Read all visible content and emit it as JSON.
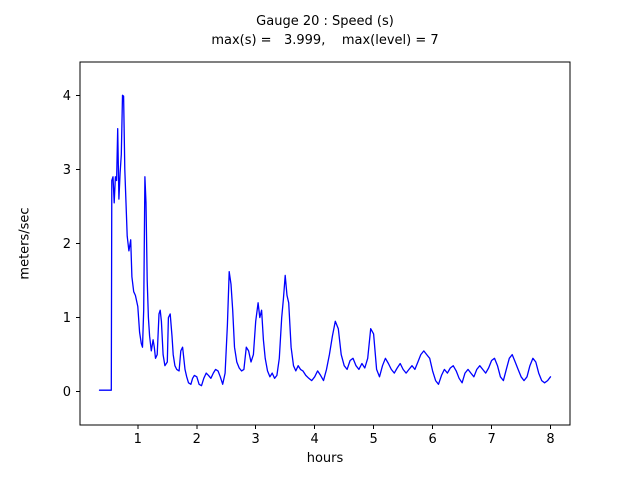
{
  "chart_data": {
    "type": "line",
    "title": "Gauge 20 : Speed (s)",
    "subtitle": "max(s) =   3.999,    max(level) = 7",
    "xlabel": "hours",
    "ylabel": "meters/sec",
    "xlim": [
      0.02,
      8.33
    ],
    "ylim": [
      -0.45,
      4.45
    ],
    "xticks": [
      1,
      2,
      3,
      4,
      5,
      6,
      7,
      8
    ],
    "yticks": [
      0,
      1,
      2,
      3,
      4
    ],
    "grid": false,
    "legend": "none",
    "line_color": "#0000ff",
    "frame_color": "#000000",
    "max_s": 3.999,
    "max_level": 7,
    "series": [
      {
        "name": "Speed (s)",
        "points": [
          [
            0.35,
            0.02
          ],
          [
            0.45,
            0.02
          ],
          [
            0.55,
            0.02
          ],
          [
            0.56,
            2.85
          ],
          [
            0.58,
            2.9
          ],
          [
            0.6,
            2.55
          ],
          [
            0.62,
            2.9
          ],
          [
            0.64,
            2.85
          ],
          [
            0.66,
            3.55
          ],
          [
            0.68,
            2.6
          ],
          [
            0.7,
            2.95
          ],
          [
            0.72,
            3.2
          ],
          [
            0.74,
            4.0
          ],
          [
            0.76,
            3.99
          ],
          [
            0.78,
            3.0
          ],
          [
            0.8,
            2.55
          ],
          [
            0.82,
            2.1
          ],
          [
            0.85,
            1.9
          ],
          [
            0.88,
            2.05
          ],
          [
            0.9,
            1.55
          ],
          [
            0.93,
            1.35
          ],
          [
            0.96,
            1.3
          ],
          [
            1.0,
            1.15
          ],
          [
            1.03,
            0.8
          ],
          [
            1.06,
            0.65
          ],
          [
            1.08,
            0.6
          ],
          [
            1.1,
            1.1
          ],
          [
            1.12,
            2.9
          ],
          [
            1.14,
            2.55
          ],
          [
            1.16,
            1.5
          ],
          [
            1.18,
            1.0
          ],
          [
            1.2,
            0.75
          ],
          [
            1.23,
            0.55
          ],
          [
            1.26,
            0.7
          ],
          [
            1.28,
            0.6
          ],
          [
            1.3,
            0.45
          ],
          [
            1.33,
            0.5
          ],
          [
            1.36,
            1.05
          ],
          [
            1.38,
            1.1
          ],
          [
            1.4,
            0.95
          ],
          [
            1.43,
            0.5
          ],
          [
            1.46,
            0.35
          ],
          [
            1.5,
            0.4
          ],
          [
            1.52,
            1.0
          ],
          [
            1.55,
            1.05
          ],
          [
            1.58,
            0.75
          ],
          [
            1.6,
            0.5
          ],
          [
            1.63,
            0.35
          ],
          [
            1.66,
            0.3
          ],
          [
            1.7,
            0.28
          ],
          [
            1.73,
            0.55
          ],
          [
            1.76,
            0.6
          ],
          [
            1.8,
            0.3
          ],
          [
            1.83,
            0.2
          ],
          [
            1.86,
            0.12
          ],
          [
            1.9,
            0.1
          ],
          [
            1.93,
            0.18
          ],
          [
            1.96,
            0.22
          ],
          [
            2.0,
            0.2
          ],
          [
            2.04,
            0.1
          ],
          [
            2.08,
            0.08
          ],
          [
            2.12,
            0.18
          ],
          [
            2.16,
            0.25
          ],
          [
            2.2,
            0.22
          ],
          [
            2.24,
            0.18
          ],
          [
            2.28,
            0.25
          ],
          [
            2.32,
            0.3
          ],
          [
            2.36,
            0.28
          ],
          [
            2.4,
            0.2
          ],
          [
            2.44,
            0.1
          ],
          [
            2.48,
            0.25
          ],
          [
            2.52,
            0.9
          ],
          [
            2.55,
            1.62
          ],
          [
            2.58,
            1.45
          ],
          [
            2.61,
            1.1
          ],
          [
            2.64,
            0.6
          ],
          [
            2.68,
            0.4
          ],
          [
            2.72,
            0.32
          ],
          [
            2.76,
            0.28
          ],
          [
            2.8,
            0.3
          ],
          [
            2.84,
            0.6
          ],
          [
            2.88,
            0.55
          ],
          [
            2.92,
            0.4
          ],
          [
            2.96,
            0.5
          ],
          [
            3.0,
            0.95
          ],
          [
            3.04,
            1.2
          ],
          [
            3.07,
            1.0
          ],
          [
            3.1,
            1.1
          ],
          [
            3.13,
            0.7
          ],
          [
            3.16,
            0.45
          ],
          [
            3.2,
            0.28
          ],
          [
            3.24,
            0.2
          ],
          [
            3.28,
            0.25
          ],
          [
            3.32,
            0.18
          ],
          [
            3.36,
            0.22
          ],
          [
            3.4,
            0.45
          ],
          [
            3.44,
            1.0
          ],
          [
            3.47,
            1.25
          ],
          [
            3.5,
            1.57
          ],
          [
            3.53,
            1.3
          ],
          [
            3.56,
            1.2
          ],
          [
            3.6,
            0.6
          ],
          [
            3.64,
            0.35
          ],
          [
            3.68,
            0.28
          ],
          [
            3.72,
            0.35
          ],
          [
            3.76,
            0.3
          ],
          [
            3.8,
            0.28
          ],
          [
            3.85,
            0.22
          ],
          [
            3.9,
            0.18
          ],
          [
            3.95,
            0.15
          ],
          [
            4.0,
            0.2
          ],
          [
            4.05,
            0.28
          ],
          [
            4.1,
            0.22
          ],
          [
            4.15,
            0.15
          ],
          [
            4.2,
            0.3
          ],
          [
            4.25,
            0.5
          ],
          [
            4.3,
            0.75
          ],
          [
            4.35,
            0.95
          ],
          [
            4.4,
            0.85
          ],
          [
            4.45,
            0.5
          ],
          [
            4.5,
            0.35
          ],
          [
            4.55,
            0.3
          ],
          [
            4.6,
            0.42
          ],
          [
            4.65,
            0.45
          ],
          [
            4.7,
            0.35
          ],
          [
            4.75,
            0.3
          ],
          [
            4.8,
            0.38
          ],
          [
            4.85,
            0.32
          ],
          [
            4.9,
            0.45
          ],
          [
            4.95,
            0.85
          ],
          [
            5.0,
            0.78
          ],
          [
            5.05,
            0.3
          ],
          [
            5.1,
            0.2
          ],
          [
            5.15,
            0.35
          ],
          [
            5.2,
            0.45
          ],
          [
            5.25,
            0.38
          ],
          [
            5.3,
            0.3
          ],
          [
            5.35,
            0.25
          ],
          [
            5.4,
            0.32
          ],
          [
            5.45,
            0.38
          ],
          [
            5.5,
            0.3
          ],
          [
            5.55,
            0.25
          ],
          [
            5.6,
            0.3
          ],
          [
            5.65,
            0.35
          ],
          [
            5.7,
            0.3
          ],
          [
            5.75,
            0.4
          ],
          [
            5.8,
            0.5
          ],
          [
            5.85,
            0.55
          ],
          [
            5.9,
            0.5
          ],
          [
            5.95,
            0.45
          ],
          [
            6.0,
            0.28
          ],
          [
            6.05,
            0.15
          ],
          [
            6.1,
            0.1
          ],
          [
            6.15,
            0.22
          ],
          [
            6.2,
            0.3
          ],
          [
            6.25,
            0.25
          ],
          [
            6.3,
            0.32
          ],
          [
            6.35,
            0.35
          ],
          [
            6.4,
            0.28
          ],
          [
            6.45,
            0.18
          ],
          [
            6.5,
            0.12
          ],
          [
            6.55,
            0.25
          ],
          [
            6.6,
            0.3
          ],
          [
            6.65,
            0.25
          ],
          [
            6.7,
            0.2
          ],
          [
            6.75,
            0.3
          ],
          [
            6.8,
            0.35
          ],
          [
            6.85,
            0.3
          ],
          [
            6.9,
            0.25
          ],
          [
            6.95,
            0.32
          ],
          [
            7.0,
            0.42
          ],
          [
            7.05,
            0.45
          ],
          [
            7.1,
            0.35
          ],
          [
            7.15,
            0.2
          ],
          [
            7.2,
            0.15
          ],
          [
            7.25,
            0.3
          ],
          [
            7.3,
            0.45
          ],
          [
            7.35,
            0.5
          ],
          [
            7.4,
            0.4
          ],
          [
            7.45,
            0.3
          ],
          [
            7.5,
            0.2
          ],
          [
            7.55,
            0.15
          ],
          [
            7.6,
            0.2
          ],
          [
            7.65,
            0.35
          ],
          [
            7.7,
            0.45
          ],
          [
            7.75,
            0.4
          ],
          [
            7.8,
            0.25
          ],
          [
            7.85,
            0.15
          ],
          [
            7.9,
            0.12
          ],
          [
            7.95,
            0.15
          ],
          [
            8.0,
            0.2
          ]
        ]
      }
    ]
  }
}
